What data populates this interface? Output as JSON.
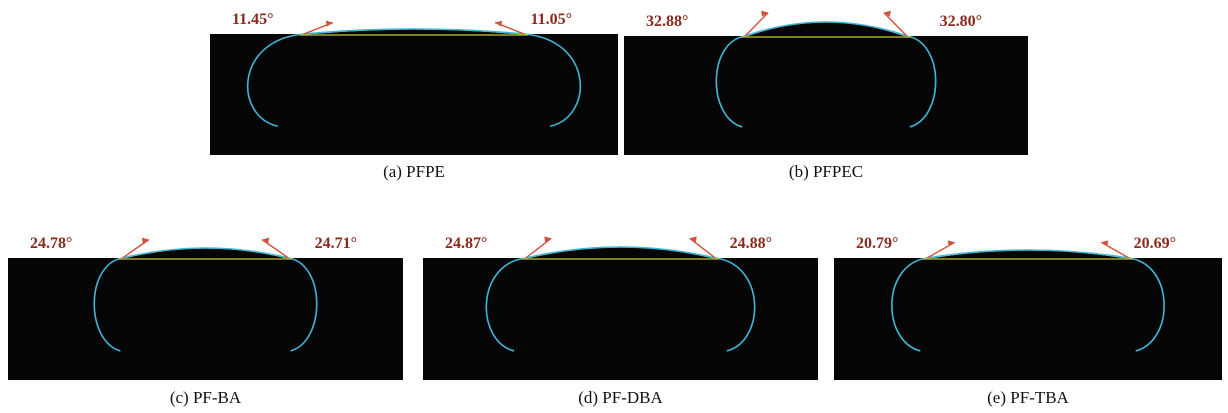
{
  "panels": [
    {
      "caption": "(a) PFPE",
      "left_angle": "11.45°",
      "right_angle": "11.05°"
    },
    {
      "caption": "(b) PFPEC",
      "left_angle": "32.88°",
      "right_angle": "32.80°"
    },
    {
      "caption": "(c) PF-BA",
      "left_angle": "24.78°",
      "right_angle": "24.71°"
    },
    {
      "caption": "(d) PF-DBA",
      "left_angle": "24.87°",
      "right_angle": "24.88°"
    },
    {
      "caption": "(e) PF-TBA",
      "left_angle": "20.79°",
      "right_angle": "20.69°"
    }
  ]
}
